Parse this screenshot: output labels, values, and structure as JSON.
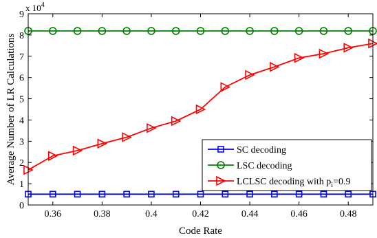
{
  "chart_data": {
    "type": "line",
    "title": "",
    "xlabel": "Code Rate",
    "ylabel": "Average Number of LR Calculations",
    "y_exponent_label": "x 10",
    "y_exponent_power": "4",
    "xlim": [
      0.35,
      0.49
    ],
    "ylim": [
      0,
      9
    ],
    "x_ticks": [
      0.36,
      0.38,
      0.4,
      0.42,
      0.44,
      0.46,
      0.48
    ],
    "x_tick_labels": [
      "0.36",
      "0.38",
      "0.4",
      "0.42",
      "0.44",
      "0.46",
      "0.48"
    ],
    "y_ticks": [
      0,
      1,
      2,
      3,
      4,
      5,
      6,
      7,
      8,
      9
    ],
    "y_tick_labels": [
      "0",
      "1",
      "2",
      "3",
      "4",
      "5",
      "6",
      "7",
      "8",
      "9"
    ],
    "grid": false,
    "legend_position": "lower-right",
    "x": [
      0.35,
      0.36,
      0.37,
      0.38,
      0.39,
      0.4,
      0.41,
      0.42,
      0.43,
      0.44,
      0.45,
      0.46,
      0.47,
      0.48,
      0.49
    ],
    "series": [
      {
        "name": "SC decoding",
        "color": "#0000ff",
        "marker": "square",
        "values": [
          0.51,
          0.51,
          0.51,
          0.51,
          0.51,
          0.51,
          0.51,
          0.51,
          0.51,
          0.51,
          0.51,
          0.51,
          0.51,
          0.51,
          0.51
        ]
      },
      {
        "name": "LSC decoding",
        "color": "#008000",
        "marker": "circle",
        "values": [
          8.19,
          8.19,
          8.19,
          8.19,
          8.19,
          8.19,
          8.19,
          8.19,
          8.19,
          8.19,
          8.19,
          8.19,
          8.19,
          8.19,
          8.19
        ]
      },
      {
        "name": "LCLSC decoding with p",
        "name_subscript": "i",
        "name_suffix": "=0.9",
        "color": "#ff0000",
        "marker": "triangle-right",
        "values": [
          1.65,
          2.31,
          2.56,
          2.89,
          3.19,
          3.62,
          3.95,
          4.5,
          5.55,
          6.12,
          6.5,
          6.92,
          7.12,
          7.4,
          7.6
        ]
      }
    ]
  }
}
